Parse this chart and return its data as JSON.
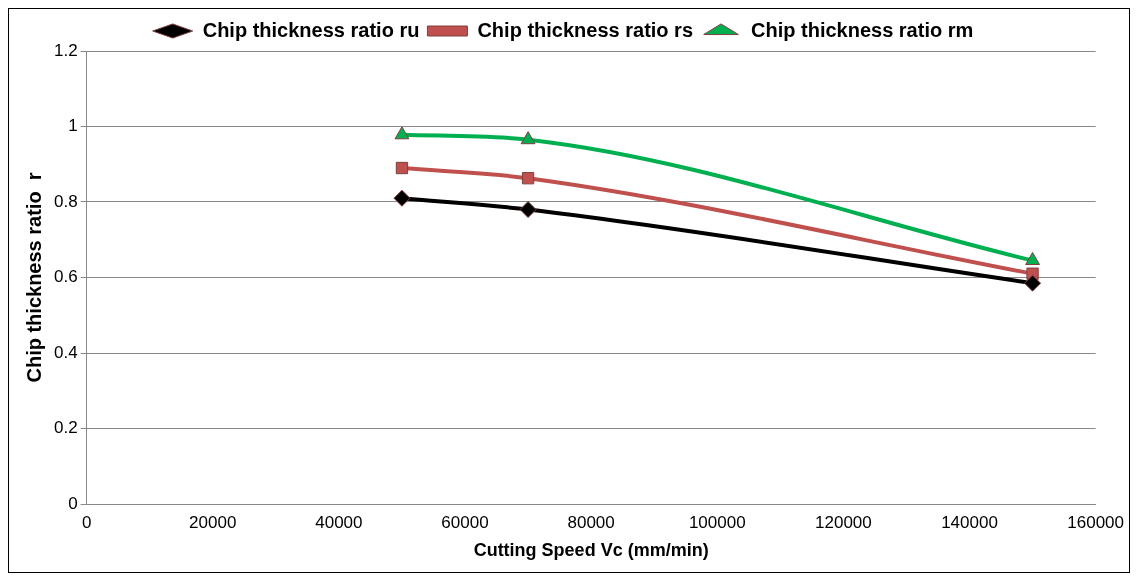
{
  "chart_data": {
    "type": "line",
    "xlabel": "Cutting Speed Vc (mm/min)",
    "ylabel": "Chip thickness ratio  r",
    "x": [
      50000,
      70000,
      150000
    ],
    "series": [
      {
        "name": "Chip thickness ratio ru",
        "color": "#000000",
        "marker": "diamond",
        "values": [
          0.81,
          0.78,
          0.585
        ]
      },
      {
        "name": "Chip thickness ratio rs",
        "color": "#c0504d",
        "marker": "square",
        "values": [
          0.89,
          0.863,
          0.61
        ]
      },
      {
        "name": "Chip thickness ratio rm",
        "color": "#00b050",
        "marker": "triangle",
        "values": [
          0.978,
          0.965,
          0.645
        ]
      }
    ],
    "xlim": [
      0,
      160000
    ],
    "xticks": [
      0,
      20000,
      40000,
      60000,
      80000,
      100000,
      120000,
      140000,
      160000
    ],
    "ylim": [
      0,
      1.2
    ],
    "yticks": [
      0,
      0.2,
      0.4,
      0.6,
      0.8,
      1,
      1.2
    ],
    "grid": "y",
    "legend": "top"
  }
}
